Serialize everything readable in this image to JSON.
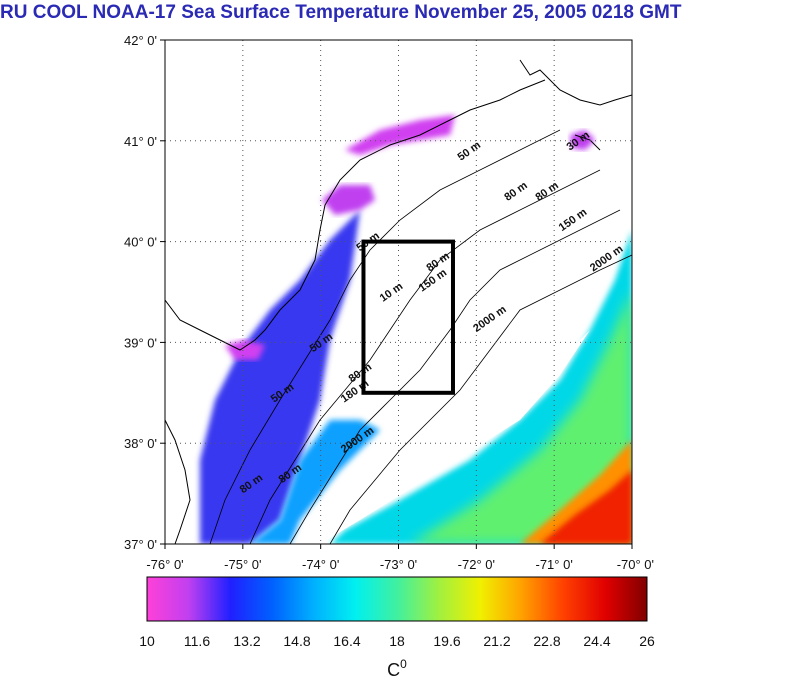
{
  "title": "RU COOL  NOAA-17 Sea Surface Temperature November 25, 2005 0218 GMT",
  "axes": {
    "lat_labels": [
      "42° 0'",
      "41° 0'",
      "40° 0'",
      "39° 0'",
      "38° 0'",
      "37° 0'"
    ],
    "lat_values": [
      42,
      41,
      40,
      39,
      38,
      37
    ],
    "lon_labels": [
      "-76° 0'",
      "-75° 0'",
      "-74° 0'",
      "-73° 0'",
      "-72° 0'",
      "-71° 0'",
      "-70° 0'"
    ],
    "lon_values": [
      -76,
      -75,
      -74,
      -73,
      -72,
      -71,
      -70
    ],
    "lat_range": [
      37,
      42
    ],
    "lon_range": [
      -76,
      -70
    ],
    "grid": "dotted"
  },
  "study_box": {
    "lon_min": -73.45,
    "lon_max": -72.3,
    "lat_min": 38.5,
    "lat_max": 40.0
  },
  "contour_labels": [
    {
      "text": "50 m",
      "lon": -72.2,
      "lat": 40.8
    },
    {
      "text": "30 m",
      "lon": -70.8,
      "lat": 40.9
    },
    {
      "text": "80 m",
      "lon": -71.6,
      "lat": 40.4
    },
    {
      "text": "80 m",
      "lon": -71.2,
      "lat": 40.4
    },
    {
      "text": "150 m",
      "lon": -70.9,
      "lat": 40.1
    },
    {
      "text": "2000 m",
      "lon": -70.5,
      "lat": 39.7
    },
    {
      "text": "80 m",
      "lon": -72.6,
      "lat": 39.7
    },
    {
      "text": "150 m",
      "lon": -72.7,
      "lat": 39.5
    },
    {
      "text": "2000 m",
      "lon": -72.0,
      "lat": 39.1
    },
    {
      "text": "50 m",
      "lon": -73.5,
      "lat": 39.9
    },
    {
      "text": "10 m",
      "lon": -73.2,
      "lat": 39.4
    },
    {
      "text": "50 m",
      "lon": -74.1,
      "lat": 38.9
    },
    {
      "text": "80 m",
      "lon": -73.6,
      "lat": 38.6
    },
    {
      "text": "180 m",
      "lon": -73.7,
      "lat": 38.4
    },
    {
      "text": "50 m",
      "lon": -74.6,
      "lat": 38.4
    },
    {
      "text": "2000 m",
      "lon": -73.7,
      "lat": 37.9
    },
    {
      "text": "80 m",
      "lon": -75.0,
      "lat": 37.5
    },
    {
      "text": "80 m",
      "lon": -74.5,
      "lat": 37.6
    }
  ],
  "colorbar": {
    "labels": [
      "10",
      "11.6",
      "13.2",
      "14.8",
      "16.4",
      "18",
      "19.6",
      "21.2",
      "22.8",
      "24.4",
      "26"
    ],
    "min": 10,
    "max": 26,
    "unit_base": "C",
    "unit_sup": "0",
    "colors": [
      "#ff40d8",
      "#c040f0",
      "#2020ff",
      "#0060ff",
      "#00b0ff",
      "#00f0f0",
      "#40f0a0",
      "#a0f040",
      "#f0f000",
      "#ffa000",
      "#ff4000",
      "#e00000",
      "#800000"
    ]
  },
  "colors": {
    "title": "#2a2ab4",
    "coast": "#000000",
    "box": "#000000"
  }
}
